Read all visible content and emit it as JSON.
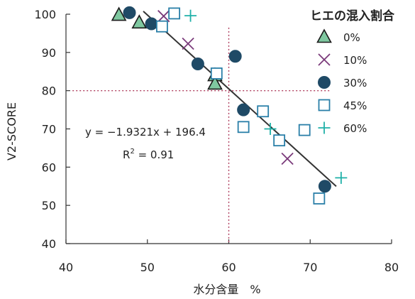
{
  "chart_data": {
    "type": "scatter",
    "xlabel": "水分含量　%",
    "ylabel": "V2-SCORE",
    "xlim": [
      40,
      80
    ],
    "ylim": [
      40,
      100
    ],
    "xticks": [
      "40",
      "50",
      "60",
      "70",
      "80"
    ],
    "yticks": [
      "40",
      "50",
      "60",
      "70",
      "80",
      "90",
      "100"
    ],
    "legend_title": "ヒエの混入割合",
    "legend_position": "top-right",
    "series": [
      {
        "name": "0%",
        "marker": "triangle",
        "color": "#7fc8a0",
        "points": [
          [
            46.5,
            99.8
          ],
          [
            49,
            97.8
          ],
          [
            58.3,
            84
          ],
          [
            58.3,
            81.8
          ]
        ]
      },
      {
        "name": "10%",
        "marker": "x",
        "color": "#7a3a7a",
        "points": [
          [
            52,
            99.5
          ],
          [
            55,
            92.3
          ],
          [
            67.2,
            62.2
          ]
        ]
      },
      {
        "name": "30%",
        "marker": "circle",
        "color": "#1f4a66",
        "points": [
          [
            47.8,
            100.4
          ],
          [
            50.5,
            97.5
          ],
          [
            56.2,
            87
          ],
          [
            60.8,
            89
          ],
          [
            61.8,
            75
          ],
          [
            71.8,
            55
          ]
        ]
      },
      {
        "name": "45%",
        "marker": "square",
        "color": "#2a7fa8",
        "points": [
          [
            51.8,
            96.8
          ],
          [
            53.3,
            100.2
          ],
          [
            58.5,
            84.5
          ],
          [
            61.8,
            70.5
          ],
          [
            64.2,
            74.6
          ],
          [
            66.2,
            67
          ],
          [
            69.3,
            69.7
          ],
          [
            71.1,
            51.8
          ]
        ]
      },
      {
        "name": "60%",
        "marker": "plus",
        "color": "#1fb0a8",
        "points": [
          [
            55.3,
            99.6
          ],
          [
            65.1,
            70
          ],
          [
            73.8,
            57.2
          ]
        ]
      }
    ],
    "regression": {
      "equation": "y = −1.9321x + 196.4",
      "r2_label": "R",
      "r2_sup": "2",
      "r2_value": " = 0.91",
      "slope": -1.9321,
      "intercept": 196.4,
      "x_range": [
        49.5,
        73.2
      ],
      "color": "#333333"
    },
    "reference_lines": {
      "vertical_x": 60,
      "horizontal_y": 80,
      "horizontal_x_range": [
        40.8,
        72.5
      ],
      "vertical_y_range": [
        40,
        96.5
      ],
      "color": "#b04060",
      "style": "dotted"
    },
    "grid": false
  }
}
